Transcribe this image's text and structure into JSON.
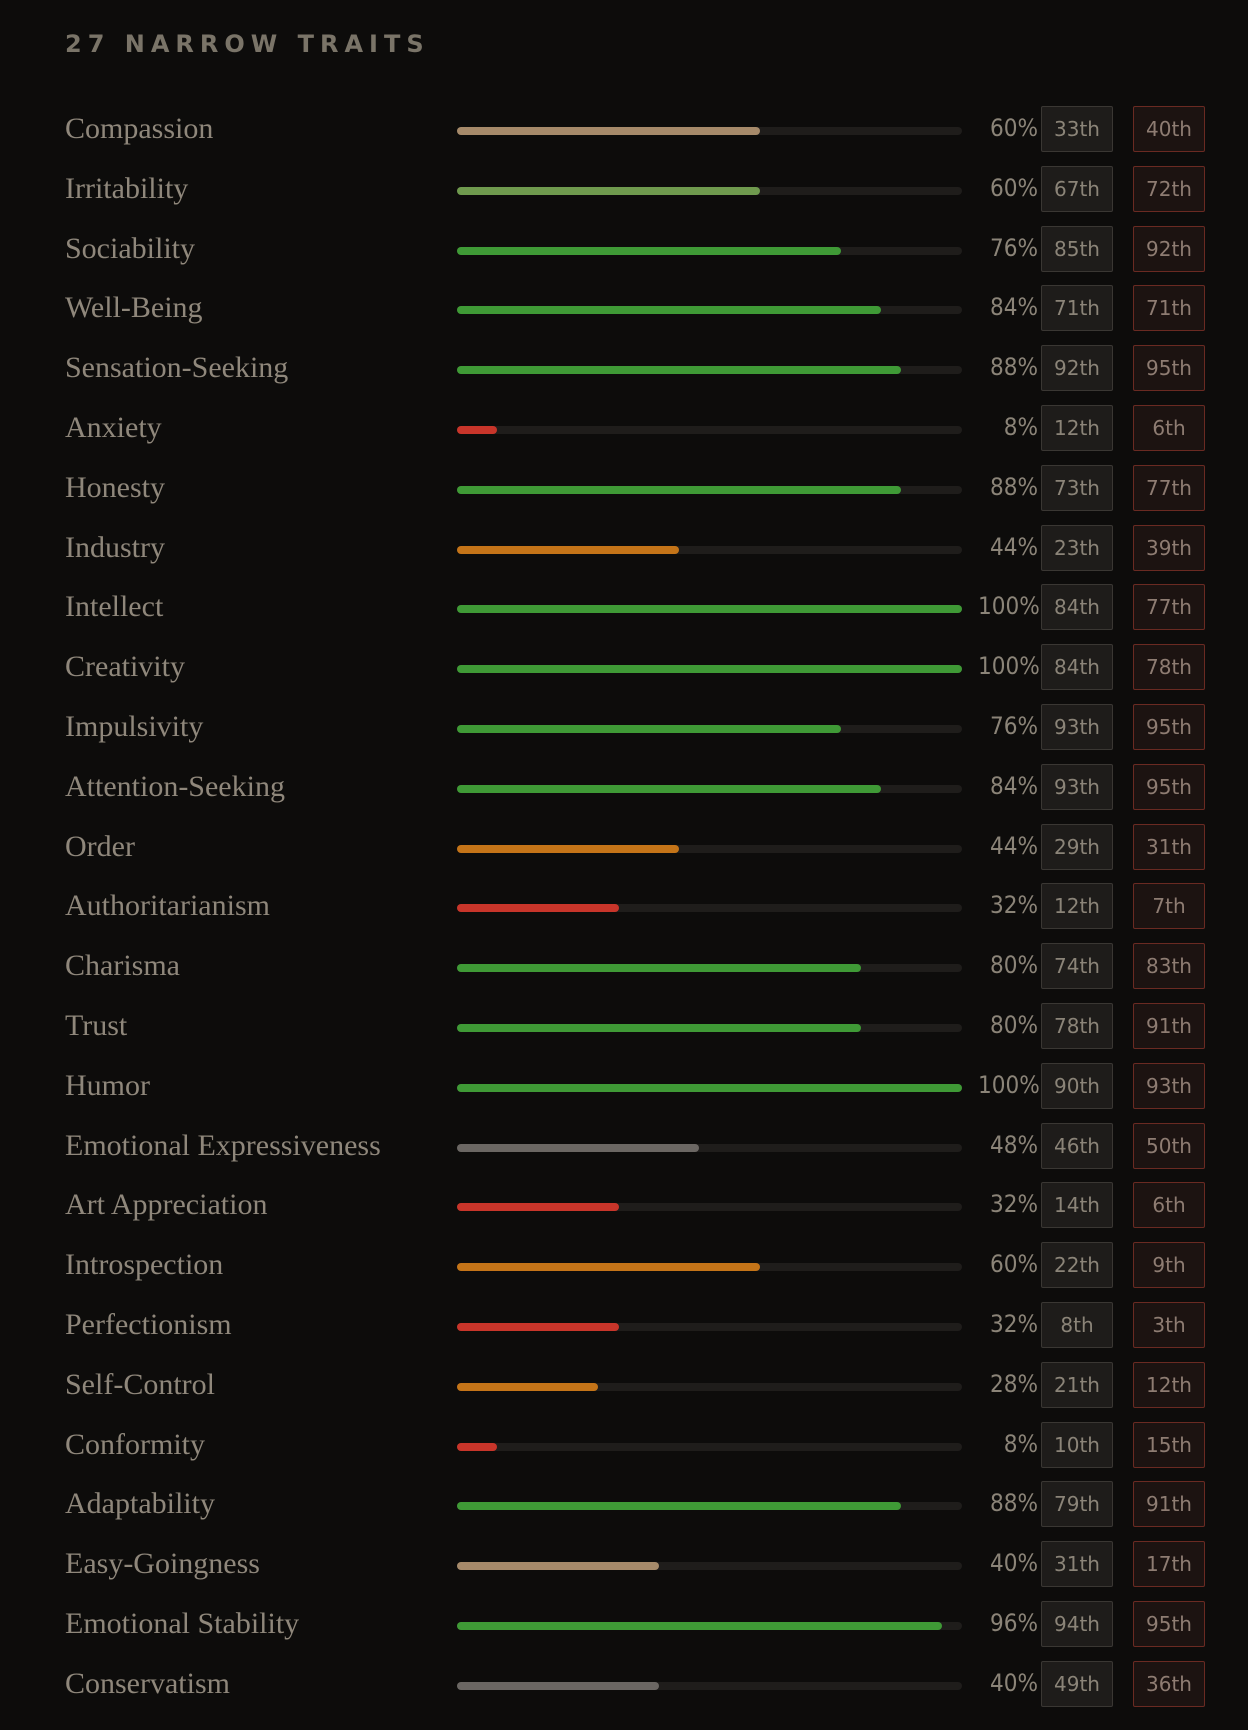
{
  "section_title": "27 NARROW TRAITS",
  "colors": {
    "tan": "#a68a6a",
    "olive": "#6f9a4e",
    "green": "#3f9a36",
    "orange": "#c47418",
    "red": "#c8352a",
    "gray": "#6b6763"
  },
  "chart_data": {
    "type": "bar",
    "orientation": "horizontal",
    "xlim": [
      0,
      100
    ],
    "categories": [
      "Compassion",
      "Irritability",
      "Sociability",
      "Well-Being",
      "Sensation-Seeking",
      "Anxiety",
      "Honesty",
      "Industry",
      "Intellect",
      "Creativity",
      "Impulsivity",
      "Attention-Seeking",
      "Order",
      "Authoritarianism",
      "Charisma",
      "Trust",
      "Humor",
      "Emotional Expressiveness",
      "Art Appreciation",
      "Introspection",
      "Perfectionism",
      "Self-Control",
      "Conformity",
      "Adaptability",
      "Easy-Goingness",
      "Emotional Stability",
      "Conservatism"
    ],
    "values": [
      60,
      60,
      76,
      84,
      88,
      8,
      88,
      44,
      100,
      100,
      76,
      84,
      44,
      32,
      80,
      80,
      100,
      48,
      32,
      60,
      32,
      28,
      8,
      88,
      40,
      96,
      40
    ],
    "value_labels": [
      "60%",
      "60%",
      "76%",
      "84%",
      "88%",
      "8%",
      "88%",
      "44%",
      "100%",
      "100%",
      "76%",
      "84%",
      "44%",
      "32%",
      "80%",
      "80%",
      "100%",
      "48%",
      "32%",
      "60%",
      "32%",
      "28%",
      "8%",
      "88%",
      "40%",
      "96%",
      "40%"
    ],
    "bar_colors": [
      "tan",
      "olive",
      "green",
      "green",
      "green",
      "red",
      "green",
      "orange",
      "green",
      "green",
      "green",
      "green",
      "orange",
      "red",
      "green",
      "green",
      "green",
      "gray",
      "red",
      "orange",
      "red",
      "orange",
      "red",
      "green",
      "tan",
      "green",
      "gray"
    ],
    "percentile_a": [
      "33th",
      "67th",
      "85th",
      "71th",
      "92th",
      "12th",
      "73th",
      "23th",
      "84th",
      "84th",
      "93th",
      "93th",
      "29th",
      "12th",
      "74th",
      "78th",
      "90th",
      "46th",
      "14th",
      "22th",
      "8th",
      "21th",
      "10th",
      "79th",
      "31th",
      "94th",
      "49th"
    ],
    "percentile_b": [
      "40th",
      "72th",
      "92th",
      "71th",
      "95th",
      "6th",
      "77th",
      "39th",
      "77th",
      "78th",
      "95th",
      "95th",
      "31th",
      "7th",
      "83th",
      "91th",
      "93th",
      "50th",
      "6th",
      "9th",
      "3th",
      "12th",
      "15th",
      "91th",
      "17th",
      "95th",
      "36th"
    ]
  }
}
